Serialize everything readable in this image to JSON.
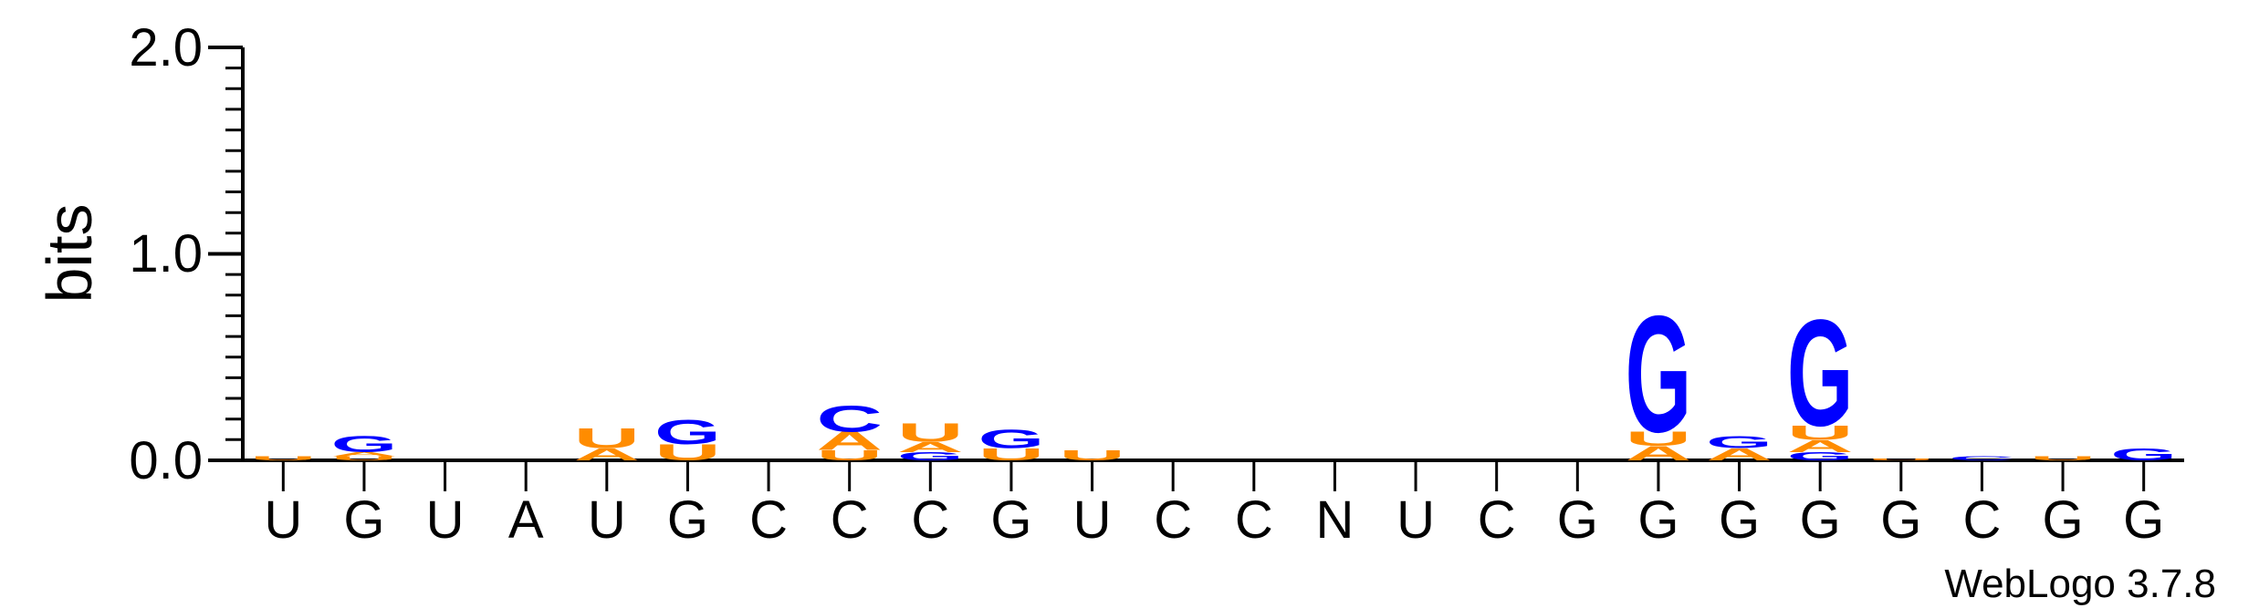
{
  "chart_data": {
    "type": "sequence-logo",
    "ylabel": "bits",
    "ylim": [
      0,
      2
    ],
    "yticks": [
      "0.0",
      "1.0",
      "2.0"
    ],
    "xlabels": [
      "U",
      "G",
      "U",
      "A",
      "U",
      "G",
      "C",
      "C",
      "C",
      "G",
      "U",
      "C",
      "C",
      "N",
      "U",
      "C",
      "G",
      "G",
      "G",
      "G",
      "G",
      "C",
      "G",
      "G"
    ],
    "credit": "WebLogo 3.7.8",
    "colors": {
      "A": "#ff8c00",
      "U": "#ff8c00",
      "G": "#0000ff",
      "C": "#0000ff"
    },
    "columns": [
      [
        {
          "l": "U",
          "v": 0.02
        }
      ],
      [
        {
          "l": "U",
          "v": 0.02
        },
        {
          "l": "A",
          "v": 0.02
        },
        {
          "l": "G",
          "v": 0.08
        }
      ],
      [],
      [],
      [
        {
          "l": "A",
          "v": 0.06
        },
        {
          "l": "U",
          "v": 0.1
        }
      ],
      [
        {
          "l": "U",
          "v": 0.08
        },
        {
          "l": "G",
          "v": 0.12
        }
      ],
      [],
      [
        {
          "l": "U",
          "v": 0.05
        },
        {
          "l": "A",
          "v": 0.09
        },
        {
          "l": "C",
          "v": 0.13
        }
      ],
      [
        {
          "l": "G",
          "v": 0.04
        },
        {
          "l": "A",
          "v": 0.05
        },
        {
          "l": "U",
          "v": 0.09
        }
      ],
      [
        {
          "l": "U",
          "v": 0.06
        },
        {
          "l": "G",
          "v": 0.09
        }
      ],
      [
        {
          "l": "U",
          "v": 0.05
        }
      ],
      [],
      [],
      [],
      [],
      [],
      [],
      [
        {
          "l": "A",
          "v": 0.07
        },
        {
          "l": "U",
          "v": 0.07
        },
        {
          "l": "G",
          "v": 0.58
        }
      ],
      [
        {
          "l": "A",
          "v": 0.06
        },
        {
          "l": "G",
          "v": 0.06
        }
      ],
      [
        {
          "l": "G",
          "v": 0.04
        },
        {
          "l": "A",
          "v": 0.06
        },
        {
          "l": "U",
          "v": 0.07
        },
        {
          "l": "G",
          "v": 0.53
        }
      ],
      [
        {
          "l": "U",
          "v": 0.01
        }
      ],
      [
        {
          "l": "C",
          "v": 0.02
        }
      ],
      [
        {
          "l": "U",
          "v": 0.02
        }
      ],
      [
        {
          "l": "G",
          "v": 0.06
        }
      ]
    ]
  }
}
